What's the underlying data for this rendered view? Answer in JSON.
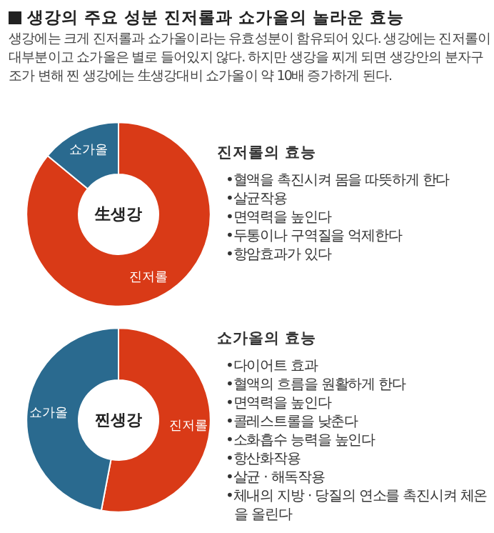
{
  "chart_data": [
    {
      "type": "donut",
      "title": "생강의 주요 성분 진저롤과 쇼가올의 놀라운 효능",
      "subtitle": "생강에는 크게 진저롤과 쇼가올이라는 유효성분이 함유되어 있다. 생강에는 진저롤이 대부분이고 쇼가올은 별로 들어있지 않다. 하지만 생강을 찌게 되면 생강안의 분자구조가 변해 찐 생강에는 生생강대비 쇼가올이 약 10배 증가하게 된다.",
      "categories": [
        "진저롤",
        "쇼가올"
      ],
      "values": [
        86,
        14
      ],
      "colors": [
        "#d93a17",
        "#2a6a8f"
      ],
      "annotations": [
        "生생강",
        "진저롤의 효능",
        "•혈액을 촉진시켜 몸을 따뜻하게 한다",
        "•살균작용",
        "•면역력을 높인다",
        "•두통이나 구역질을 억제한다",
        "•항암효과가 있다"
      ]
    },
    {
      "type": "donut",
      "categories": [
        "진저롤",
        "쇼가올"
      ],
      "values": [
        53,
        47
      ],
      "colors": [
        "#d93a17",
        "#2a6a8f"
      ],
      "annotations": [
        "찐생강",
        "쇼가올의 효능",
        "•다이어트 효과",
        "•혈액의 흐름을 원활하게 한다",
        "•면역력을 높인다",
        "•콜레스트롤을 낮춘다",
        "•소화흡수 능력을 높인다",
        "•항산화작용",
        "•살균 · 해독작용",
        "•체내의 지방 · 당질의 연소를 촉진시켜 체온을 올린다"
      ]
    }
  ]
}
